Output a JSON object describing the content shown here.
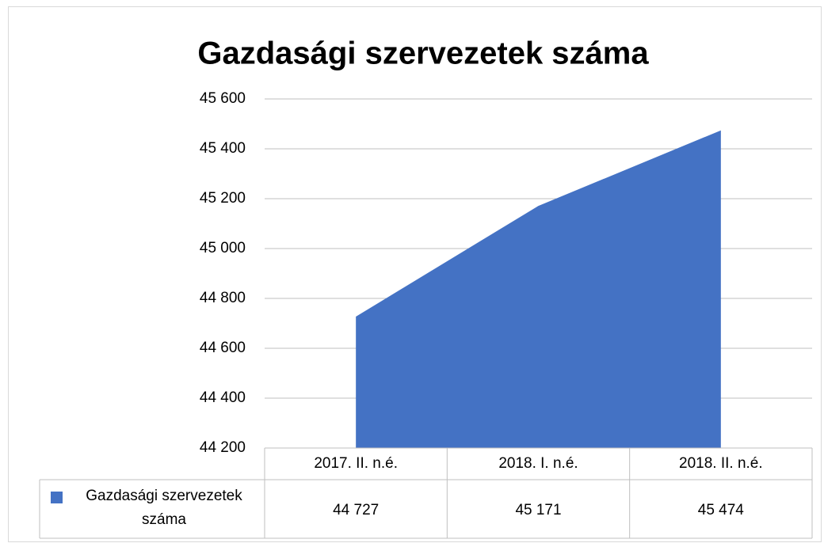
{
  "chart_data": {
    "type": "area",
    "title": "Gazdasági szervezetek száma",
    "categories": [
      "2017. II. n.é.",
      "2018. I. n.é.",
      "2018. II. n.é."
    ],
    "series": [
      {
        "name": "Gazdasági szervezetek száma",
        "color": "#4472c4",
        "values": [
          44727,
          45171,
          45474
        ],
        "value_labels": [
          "44 727",
          "45 171",
          "45 474"
        ]
      }
    ],
    "ylim": [
      44200,
      45600
    ],
    "yticks": [
      {
        "value": 44200,
        "label": "44 200"
      },
      {
        "value": 44400,
        "label": "44 400"
      },
      {
        "value": 44600,
        "label": "44 600"
      },
      {
        "value": 44800,
        "label": "44 800"
      },
      {
        "value": 45000,
        "label": "45 000"
      },
      {
        "value": 45200,
        "label": "45 200"
      },
      {
        "value": 45400,
        "label": "45 400"
      },
      {
        "value": 45600,
        "label": "45 600"
      }
    ],
    "grid": true
  }
}
